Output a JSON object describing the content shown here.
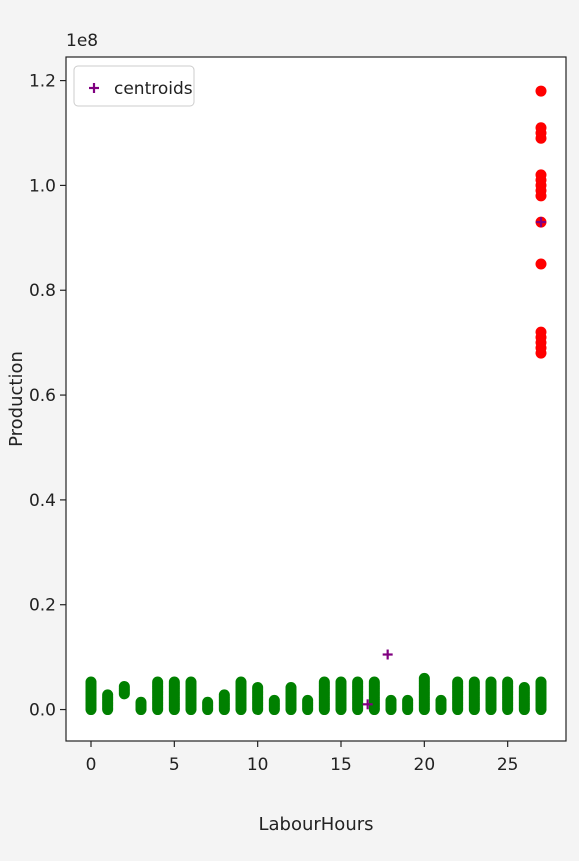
{
  "chart_data": {
    "type": "scatter",
    "title": "",
    "xlabel": "LabourHours",
    "ylabel": "Production",
    "offset_text": "1e8",
    "xlim": [
      -1.5,
      28.5
    ],
    "ylim": [
      -0.06,
      1.245
    ],
    "x_ticks": [
      0,
      5,
      10,
      15,
      20,
      25
    ],
    "x_tick_labels": [
      "0",
      "5",
      "10",
      "15",
      "20",
      "25"
    ],
    "y_ticks": [
      0.0,
      0.2,
      0.4,
      0.6,
      0.8,
      1.0,
      1.2
    ],
    "y_tick_labels": [
      "0.0",
      "0.2",
      "0.4",
      "0.6",
      "0.8",
      "1.0",
      "1.2"
    ],
    "grid": false,
    "legend_position": "top-left",
    "series": [
      {
        "color": "#008000",
        "marker": "circle",
        "columns": [
          {
            "x": 0,
            "ymin": 0.0,
            "ymax": 0.055
          },
          {
            "x": 1,
            "ymin": 0.0,
            "ymax": 0.03
          },
          {
            "x": 2,
            "ymin": 0.03,
            "ymax": 0.045
          },
          {
            "x": 3,
            "ymin": 0.0,
            "ymax": 0.015
          },
          {
            "x": 4,
            "ymin": 0.0,
            "ymax": 0.055
          },
          {
            "x": 5,
            "ymin": 0.0,
            "ymax": 0.055
          },
          {
            "x": 6,
            "ymin": 0.0,
            "ymax": 0.055
          },
          {
            "x": 7,
            "ymin": 0.0,
            "ymax": 0.015
          },
          {
            "x": 8,
            "ymin": 0.0,
            "ymax": 0.03
          },
          {
            "x": 9,
            "ymin": 0.0,
            "ymax": 0.055
          },
          {
            "x": 10,
            "ymin": 0.0,
            "ymax": 0.045
          },
          {
            "x": 11,
            "ymin": 0.0,
            "ymax": 0.02
          },
          {
            "x": 12,
            "ymin": 0.0,
            "ymax": 0.045
          },
          {
            "x": 13,
            "ymin": 0.0,
            "ymax": 0.02
          },
          {
            "x": 14,
            "ymin": 0.0,
            "ymax": 0.055
          },
          {
            "x": 15,
            "ymin": 0.0,
            "ymax": 0.055
          },
          {
            "x": 16,
            "ymin": 0.0,
            "ymax": 0.055
          },
          {
            "x": 17,
            "ymin": 0.0,
            "ymax": 0.055
          },
          {
            "x": 18,
            "ymin": 0.0,
            "ymax": 0.02
          },
          {
            "x": 19,
            "ymin": 0.0,
            "ymax": 0.02
          },
          {
            "x": 20,
            "ymin": 0.0,
            "ymax": 0.06
          },
          {
            "x": 21,
            "ymin": 0.0,
            "ymax": 0.02
          },
          {
            "x": 22,
            "ymin": 0.0,
            "ymax": 0.055
          },
          {
            "x": 23,
            "ymin": 0.0,
            "ymax": 0.055
          },
          {
            "x": 24,
            "ymin": 0.0,
            "ymax": 0.055
          },
          {
            "x": 25,
            "ymin": 0.0,
            "ymax": 0.055
          },
          {
            "x": 26,
            "ymin": 0.0,
            "ymax": 0.045
          },
          {
            "x": 27,
            "ymin": 0.0,
            "ymax": 0.055
          }
        ]
      },
      {
        "color": "#ff0000",
        "marker": "circle",
        "points": [
          {
            "x": 27,
            "y": 1.18
          },
          {
            "x": 27,
            "y": 1.11
          },
          {
            "x": 27,
            "y": 1.1
          },
          {
            "x": 27,
            "y": 1.09
          },
          {
            "x": 27,
            "y": 1.02
          },
          {
            "x": 27,
            "y": 1.01
          },
          {
            "x": 27,
            "y": 1.0
          },
          {
            "x": 27,
            "y": 0.99
          },
          {
            "x": 27,
            "y": 0.98
          },
          {
            "x": 27,
            "y": 0.93
          },
          {
            "x": 27,
            "y": 0.85
          },
          {
            "x": 27,
            "y": 0.72
          },
          {
            "x": 27,
            "y": 0.71
          },
          {
            "x": 27,
            "y": 0.7
          },
          {
            "x": 27,
            "y": 0.69
          },
          {
            "x": 27,
            "y": 0.68
          }
        ]
      },
      {
        "name": "centroids",
        "color": "#800080",
        "marker": "plus",
        "points": [
          {
            "x": 16.6,
            "y": 0.01
          },
          {
            "x": 17.8,
            "y": 0.105
          },
          {
            "x": 27,
            "y": 0.93
          }
        ]
      }
    ]
  }
}
